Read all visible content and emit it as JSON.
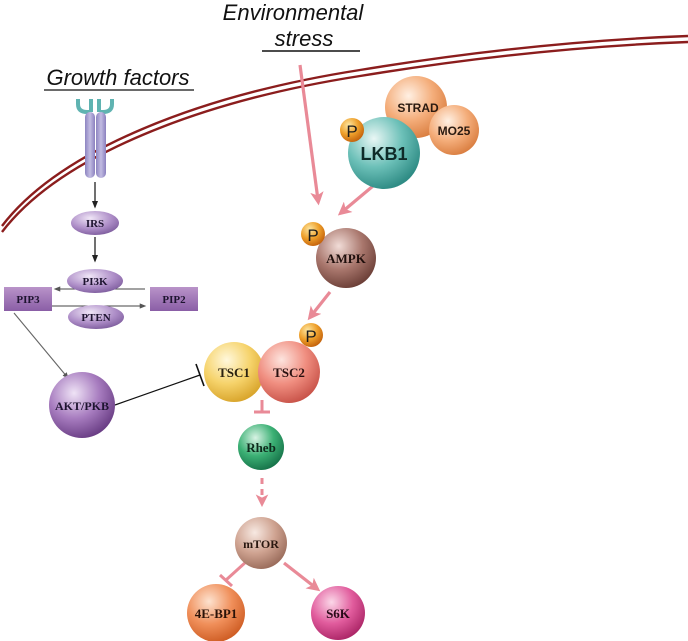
{
  "labels": {
    "environmental_stress_line1": "Environmental",
    "environmental_stress_line2": "stress",
    "growth_factors": "Growth factors"
  },
  "nodes": {
    "irs": "IRS",
    "pi3k": "PI3K",
    "pten": "PTEN",
    "pip3": "PIP3",
    "pip2": "PIP2",
    "akt": "AKT/PKB",
    "stradFull": "STRAD",
    "mo25": "MO25",
    "lkb1": "LKB1",
    "ampk": "AMPK",
    "tsc1": "TSC1",
    "tsc2": "TSC2",
    "rheb": "Rheb",
    "mtor": "mTOR",
    "ebp1": "4E-BP1",
    "s6k": "S6K"
  },
  "phospho": {
    "lkb1_p": "P",
    "ampk_p": "P",
    "tsc2_p": "P"
  },
  "colors": {
    "membrane": "#8b1d1d",
    "pink_arrow": "#e98a97",
    "receptor": "#a79fcf",
    "receptor_cap": "#5fb3b1",
    "purple": "#9a6db0",
    "teal": "#5ab8b0",
    "peach": "#f2a46e",
    "orange_p": "#e48a1d",
    "brown": "#9a6a5e",
    "yellow": "#f3cd5a",
    "salmon": "#ef8575",
    "green": "#2fa36b",
    "tan": "#c89a86",
    "orange": "#ef8a55",
    "magenta": "#dc4f94"
  }
}
